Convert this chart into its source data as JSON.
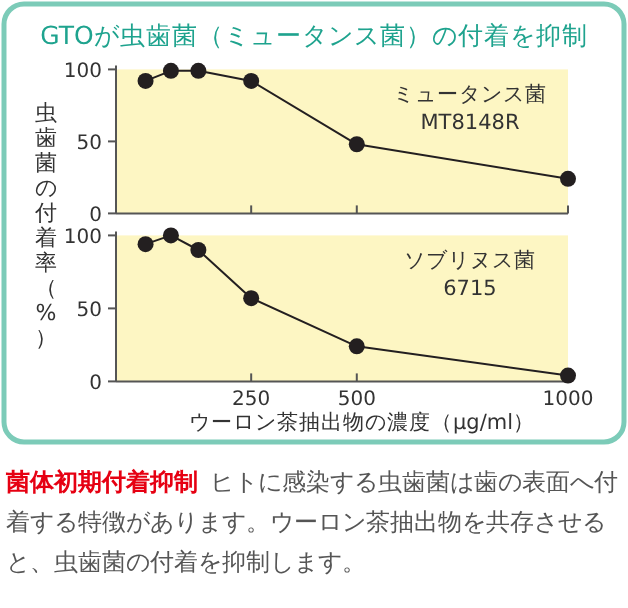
{
  "chart_data": [
    {
      "type": "line",
      "title": "GTOが虫歯菌（ミュータンス菌）の付着を抑制",
      "ylabel": "虫歯菌の付着率（%）",
      "x": [
        0,
        60,
        125,
        250,
        500,
        1000
      ],
      "xlim": [
        -70,
        1000
      ],
      "xticks": [
        250,
        500,
        1000
      ],
      "ylim": [
        0,
        100
      ],
      "yticks": [
        0,
        50,
        100
      ],
      "tick_labels": "y",
      "marker": "circle",
      "color": "#231f20",
      "values": [
        92,
        99,
        99,
        92,
        48,
        24
      ],
      "annotations": [
        "ミュータンス菌 MT8148R"
      ]
    },
    {
      "type": "line",
      "xlabel": "ウーロン茶抽出物の濃度（μg/ml）",
      "x": [
        0,
        60,
        125,
        250,
        500,
        1000
      ],
      "xlim": [
        -70,
        1000
      ],
      "xticks": [
        250,
        500,
        1000
      ],
      "ylim": [
        0,
        100
      ],
      "yticks": [
        0,
        50,
        100
      ],
      "marker": "circle",
      "color": "#231f20",
      "values": [
        94,
        100,
        90,
        57,
        24,
        4
      ],
      "annotations": [
        "ソブリヌス菌 6715",
        "菌体初期付着抑制",
        "ヒトに感染する虫歯菌は歯の表面へ付着する特徴があります。ウーロン茶抽出物を共存させると、虫歯菌の付着を抑制します。"
      ]
    }
  ]
}
